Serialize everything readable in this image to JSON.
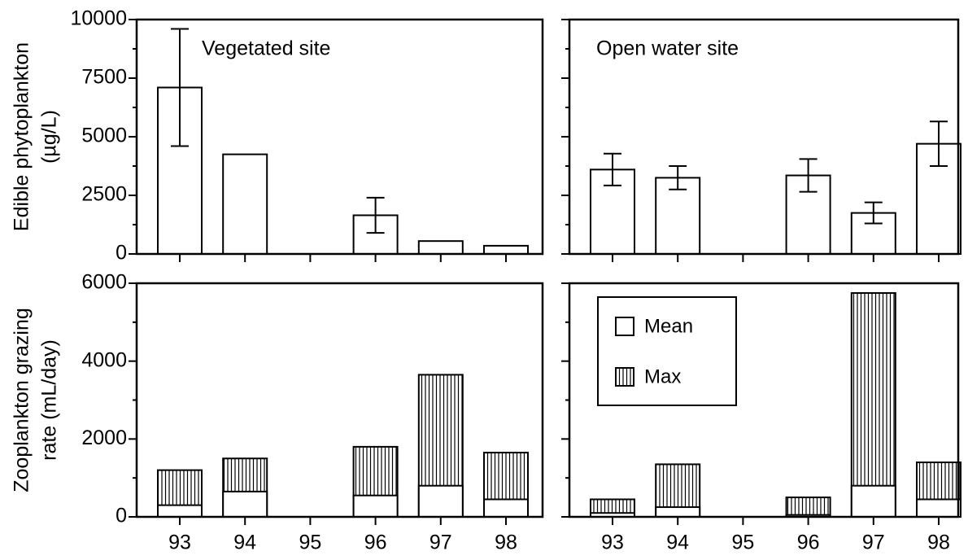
{
  "chart_data": [
    {
      "type": "bar",
      "annotation": "Vegetated site",
      "y_label": [
        "Edible phytoplankton",
        "(µg/L)"
      ],
      "categories": [
        "93",
        "94",
        "95",
        "96",
        "97",
        "98"
      ],
      "values": [
        7100,
        4250,
        null,
        1650,
        550,
        350
      ],
      "errors": [
        2500,
        null,
        null,
        750,
        null,
        null
      ],
      "color": "#ffffff",
      "ylim": [
        0,
        10000
      ],
      "yticks": [
        0,
        2500,
        5000,
        7500,
        10000
      ],
      "yminorticks": [
        1250,
        3750,
        6250,
        8750
      ],
      "show_ytick_labels": true,
      "show_xtick_labels": false
    },
    {
      "type": "bar",
      "annotation": "Open water site",
      "categories": [
        "93",
        "94",
        "95",
        "96",
        "97",
        "98"
      ],
      "values": [
        3600,
        3250,
        null,
        3350,
        1750,
        4700
      ],
      "errors": [
        680,
        500,
        null,
        700,
        450,
        950
      ],
      "color": "#ffffff",
      "ylim": [
        0,
        10000
      ],
      "yticks": [
        0,
        2500,
        5000,
        7500,
        10000
      ],
      "yminorticks": [
        1250,
        3750,
        6250,
        8750
      ],
      "show_ytick_labels": false,
      "show_xtick_labels": false
    },
    {
      "type": "overlay-bar",
      "y_label": [
        "Zooplankton grazing",
        "rate (mL/day)"
      ],
      "categories": [
        "93",
        "94",
        "95",
        "96",
        "97",
        "98"
      ],
      "series": [
        {
          "name": "Mean",
          "color": "#ffffff",
          "values": [
            300,
            650,
            null,
            550,
            800,
            450
          ]
        },
        {
          "name": "Max",
          "color": "#000000",
          "hatch": "vertical",
          "values": [
            1200,
            1500,
            null,
            1800,
            3650,
            1650
          ]
        }
      ],
      "ylim": [
        0,
        6000
      ],
      "yticks": [
        0,
        2000,
        4000,
        6000
      ],
      "yminorticks": [
        1000,
        3000,
        5000
      ],
      "show_ytick_labels": true,
      "show_xtick_labels": true
    },
    {
      "type": "overlay-bar",
      "categories": [
        "93",
        "94",
        "95",
        "96",
        "97",
        "98"
      ],
      "series": [
        {
          "name": "Mean",
          "color": "#ffffff",
          "values": [
            100,
            250,
            null,
            50,
            800,
            450
          ]
        },
        {
          "name": "Max",
          "color": "#000000",
          "hatch": "vertical",
          "values": [
            450,
            1350,
            null,
            500,
            5750,
            1400
          ]
        }
      ],
      "ylim": [
        0,
        6000
      ],
      "yticks": [
        0,
        2000,
        4000,
        6000
      ],
      "yminorticks": [
        1000,
        3000,
        5000
      ],
      "show_ytick_labels": false,
      "show_xtick_labels": true,
      "legend": "upper-left"
    }
  ]
}
